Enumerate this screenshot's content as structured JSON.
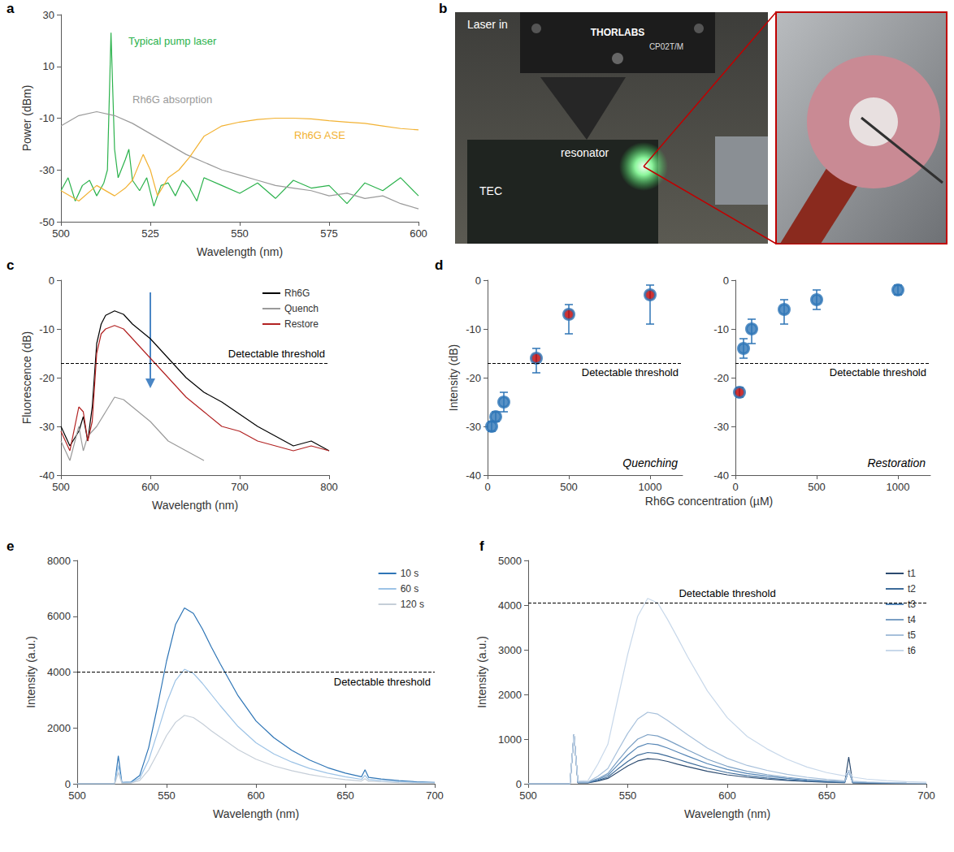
{
  "chart_data": [
    {
      "panel": "a",
      "type": "line",
      "xlabel": "Wavelength (nm)",
      "ylabel": "Power (dBm)",
      "xlim": [
        500,
        600
      ],
      "xticks": [
        500,
        525,
        550,
        575,
        600
      ],
      "ylim": [
        -50,
        30
      ],
      "yticks": [
        -50,
        -30,
        -10,
        10,
        30
      ],
      "grid": false,
      "series": [
        {
          "name": "Typical pump laser",
          "color": "#2bb24c",
          "x": [
            500,
            502,
            504,
            506,
            508,
            510,
            512,
            513,
            514,
            515,
            516,
            518,
            519,
            520,
            522,
            524,
            526,
            528,
            530,
            532,
            534,
            536,
            538,
            540,
            545,
            550,
            555,
            560,
            565,
            570,
            575,
            580,
            585,
            590,
            595,
            600
          ],
          "values": [
            -38,
            -33,
            -42,
            -36,
            -34,
            -40,
            -35,
            -30,
            23,
            -22,
            -33,
            -26,
            -22,
            -34,
            -38,
            -33,
            -44,
            -36,
            -35,
            -40,
            -34,
            -37,
            -42,
            -33,
            -36,
            -39,
            -35,
            -41,
            -34,
            -37,
            -36,
            -43,
            -35,
            -38,
            -33,
            -40
          ]
        },
        {
          "name": "Rh6G absorption",
          "color": "#9a9a9a",
          "x": [
            500,
            505,
            510,
            515,
            520,
            525,
            530,
            535,
            540,
            545,
            550,
            555,
            560,
            565,
            570,
            575,
            580,
            585,
            590,
            595,
            600
          ],
          "values": [
            -13,
            -9,
            -7.5,
            -9,
            -12,
            -16,
            -20,
            -24,
            -27,
            -30,
            -32,
            -34,
            -36,
            -37,
            -38,
            -40,
            -39,
            -41,
            -40,
            -43,
            -45
          ]
        },
        {
          "name": "Rh6G ASE",
          "color": "#f2b233",
          "x": [
            500,
            505,
            510,
            515,
            518,
            520,
            523,
            525,
            527,
            530,
            533,
            536,
            540,
            545,
            550,
            555,
            560,
            565,
            570,
            575,
            580,
            585,
            590,
            595,
            600
          ],
          "values": [
            -38,
            -42,
            -36,
            -40,
            -37,
            -34,
            -24,
            -30,
            -40,
            -33,
            -30,
            -25,
            -17,
            -13,
            -11.5,
            -10.5,
            -10,
            -10,
            -10.3,
            -11,
            -11.5,
            -12,
            -13,
            -14,
            -14.5
          ]
        }
      ]
    },
    {
      "panel": "b",
      "type": "photo",
      "labels": {
        "brand": "THORLABS",
        "model": "CP02T/M",
        "input": "Laser in",
        "device": "resonator",
        "stage": "TEC"
      }
    },
    {
      "panel": "c",
      "type": "line",
      "xlabel": "Wavelength (nm)",
      "ylabel": "Fluorescence (dB)",
      "xlim": [
        500,
        800
      ],
      "xticks": [
        500,
        600,
        700,
        800
      ],
      "ylim": [
        -40,
        0
      ],
      "yticks": [
        -40,
        -30,
        -20,
        -10,
        0
      ],
      "grid": false,
      "legend": "upper right",
      "threshold": -17,
      "threshold_label": "Detectable threshold",
      "series": [
        {
          "name": "Rh6G",
          "color": "#000000",
          "x": [
            500,
            510,
            520,
            525,
            530,
            535,
            540,
            545,
            550,
            560,
            570,
            580,
            590,
            600,
            620,
            640,
            660,
            680,
            700,
            720,
            740,
            760,
            780,
            800
          ],
          "values": [
            -30,
            -34,
            -31,
            -28,
            -33,
            -26,
            -13,
            -9,
            -7.2,
            -6.3,
            -7,
            -9,
            -10.5,
            -12,
            -16,
            -20,
            -23,
            -25,
            -27.5,
            -30,
            -32,
            -34,
            -33,
            -35
          ]
        },
        {
          "name": "Quench",
          "color": "#9a9a9a",
          "x": [
            500,
            510,
            520,
            525,
            530,
            540,
            550,
            560,
            570,
            580,
            590,
            600,
            620,
            640,
            660
          ],
          "values": [
            -33,
            -37,
            -30,
            -35,
            -32,
            -30,
            -27,
            -24,
            -24.5,
            -26,
            -27.5,
            -29,
            -33,
            -35,
            -37
          ]
        },
        {
          "name": "Restore",
          "color": "#b22222",
          "x": [
            500,
            510,
            520,
            525,
            530,
            535,
            540,
            545,
            550,
            560,
            570,
            580,
            590,
            600,
            620,
            640,
            660,
            680,
            700,
            720,
            740,
            760,
            780,
            800
          ],
          "values": [
            -31,
            -35,
            -26,
            -27,
            -33,
            -29,
            -15,
            -11,
            -10,
            -9.3,
            -10,
            -12,
            -14,
            -16,
            -20,
            -24,
            -27,
            -30,
            -31,
            -33,
            -34,
            -35,
            -34,
            -35
          ]
        }
      ]
    },
    {
      "panel": "d",
      "type": "scatter",
      "title": "Quenching",
      "xlabel": "Rh6G concentration (µM)",
      "ylabel": "Intensity (dB)",
      "xlim": [
        0,
        1200
      ],
      "xticks": [
        0,
        500,
        1000
      ],
      "ylim": [
        -40,
        0
      ],
      "yticks": [
        -40,
        -30,
        -20,
        -10,
        0
      ],
      "grid": false,
      "threshold": -17,
      "threshold_label": "Detectable threshold",
      "marker": "circle",
      "color": "#2e75b6",
      "x": [
        25,
        50,
        100,
        300,
        500,
        1000
      ],
      "values": [
        -30,
        -28,
        -25,
        -16,
        -7,
        -3
      ],
      "lower": [
        -31,
        -29,
        -27,
        -19,
        -11,
        -9
      ],
      "upper": [
        -29,
        -27,
        -23,
        -14,
        -5,
        -1
      ],
      "colors": [
        "#2e75b6",
        "#2e75b6",
        "#2e75b6",
        "#c00000",
        "#c00000",
        "#c00000"
      ]
    },
    {
      "type": "scatter",
      "title": "Restoration",
      "xlim": [
        0,
        1200
      ],
      "xticks": [
        0,
        500,
        1000
      ],
      "ylim": [
        -40,
        0
      ],
      "yticks": [
        -40,
        -30,
        -20,
        -10,
        0
      ],
      "grid": false,
      "threshold": -17,
      "threshold_label": "Detectable threshold",
      "marker": "circle",
      "color": "#2e75b6",
      "x": [
        25,
        50,
        100,
        300,
        500,
        1000
      ],
      "values": [
        -23,
        -14,
        -10,
        -6,
        -4,
        -2
      ],
      "lower": [
        -24,
        -16,
        -13,
        -9,
        -6,
        -3
      ],
      "upper": [
        -22,
        -12,
        -8,
        -4,
        -2,
        -1
      ],
      "colors": [
        "#c00000",
        "#2e75b6",
        "#2e75b6",
        "#2e75b6",
        "#2e75b6",
        "#2e75b6"
      ]
    },
    {
      "panel": "e",
      "type": "line",
      "xlabel": "Wavelength (nm)",
      "ylabel": "Intensity (a.u.)",
      "xlim": [
        500,
        700
      ],
      "xticks": [
        500,
        550,
        600,
        650,
        700
      ],
      "ylim": [
        0,
        8000
      ],
      "yticks": [
        0,
        2000,
        4000,
        6000,
        8000
      ],
      "grid": false,
      "legend": "upper right",
      "threshold": 4000,
      "threshold_label": "Detectable threshold",
      "x": [
        500,
        515,
        521,
        523,
        525,
        530,
        535,
        540,
        545,
        550,
        555,
        560,
        565,
        570,
        575,
        580,
        590,
        600,
        610,
        620,
        630,
        640,
        650,
        659,
        661,
        663,
        670,
        680,
        690,
        700
      ],
      "series": [
        {
          "name": "10 s",
          "color": "#2e75b6",
          "values": [
            0,
            0,
            0,
            1000,
            50,
            60,
            300,
            1300,
            2800,
            4400,
            5700,
            6300,
            6100,
            5550,
            4900,
            4300,
            3150,
            2250,
            1650,
            1200,
            850,
            580,
            380,
            250,
            500,
            230,
            170,
            110,
            70,
            50
          ]
        },
        {
          "name": "60 s",
          "color": "#9dc3e6",
          "values": [
            0,
            0,
            0,
            650,
            30,
            40,
            200,
            850,
            1850,
            2900,
            3700,
            4100,
            3950,
            3600,
            3200,
            2800,
            2050,
            1470,
            1070,
            780,
            550,
            380,
            250,
            160,
            300,
            150,
            110,
            70,
            45,
            30
          ]
        },
        {
          "name": "120 s",
          "color": "#c5ced8",
          "values": [
            0,
            0,
            0,
            400,
            20,
            25,
            120,
            500,
            1100,
            1730,
            2200,
            2450,
            2370,
            2150,
            1900,
            1670,
            1220,
            880,
            640,
            470,
            330,
            225,
            150,
            100,
            180,
            90,
            65,
            40,
            25,
            20
          ]
        }
      ]
    },
    {
      "panel": "f",
      "type": "line",
      "xlabel": "Wavelength (nm)",
      "ylabel": "Intensity (a.u.)",
      "xlim": [
        500,
        700
      ],
      "xticks": [
        500,
        550,
        600,
        650,
        700
      ],
      "ylim": [
        0,
        5000
      ],
      "yticks": [
        0,
        1000,
        2000,
        3000,
        4000,
        5000
      ],
      "grid": false,
      "legend": "upper right",
      "threshold": 4050,
      "threshold_label": "Detectable threshold",
      "x": [
        500,
        515,
        521,
        523,
        525,
        530,
        535,
        540,
        545,
        550,
        555,
        560,
        565,
        570,
        575,
        580,
        590,
        600,
        610,
        620,
        630,
        640,
        650,
        659,
        661,
        663,
        670,
        680,
        690,
        700
      ],
      "series": [
        {
          "name": "t1",
          "color": "#2b4a6f",
          "values": [
            0,
            0,
            0,
            1100,
            20,
            20,
            60,
            120,
            260,
            400,
            510,
            560,
            545,
            500,
            440,
            385,
            280,
            200,
            145,
            105,
            75,
            50,
            35,
            25,
            600,
            20,
            15,
            10,
            5,
            5
          ]
        },
        {
          "name": "t2",
          "color": "#3d6b99",
          "values": [
            0,
            0,
            0,
            1100,
            25,
            25,
            75,
            150,
            330,
            500,
            640,
            700,
            680,
            620,
            550,
            480,
            350,
            250,
            180,
            130,
            90,
            62,
            42,
            30,
            300,
            25,
            18,
            12,
            8,
            6
          ]
        },
        {
          "name": "t3",
          "color": "#5585b5",
          "values": [
            0,
            0,
            0,
            1100,
            30,
            30,
            95,
            190,
            420,
            640,
            820,
            900,
            875,
            800,
            710,
            620,
            450,
            320,
            230,
            170,
            120,
            80,
            55,
            38,
            300,
            32,
            23,
            15,
            10,
            8
          ]
        },
        {
          "name": "t4",
          "color": "#7a9fc4",
          "values": [
            0,
            0,
            0,
            1100,
            35,
            35,
            115,
            230,
            510,
            780,
            1000,
            1100,
            1070,
            980,
            870,
            760,
            550,
            390,
            280,
            205,
            145,
            98,
            66,
            46,
            300,
            40,
            28,
            18,
            12,
            9
          ]
        },
        {
          "name": "t5",
          "color": "#a7c0db",
          "values": [
            0,
            0,
            0,
            1100,
            40,
            40,
            170,
            340,
            740,
            1130,
            1450,
            1600,
            1560,
            1420,
            1260,
            1100,
            800,
            570,
            410,
            300,
            210,
            145,
            97,
            67,
            300,
            58,
            41,
            27,
            18,
            13
          ]
        },
        {
          "name": "t6",
          "color": "#c8d8ea",
          "values": [
            0,
            0,
            0,
            1100,
            60,
            70,
            440,
            880,
            1900,
            2900,
            3750,
            4150,
            4050,
            3680,
            3270,
            2850,
            2080,
            1480,
            1060,
            780,
            550,
            375,
            250,
            175,
            300,
            150,
            105,
            70,
            47,
            35
          ]
        }
      ]
    }
  ]
}
